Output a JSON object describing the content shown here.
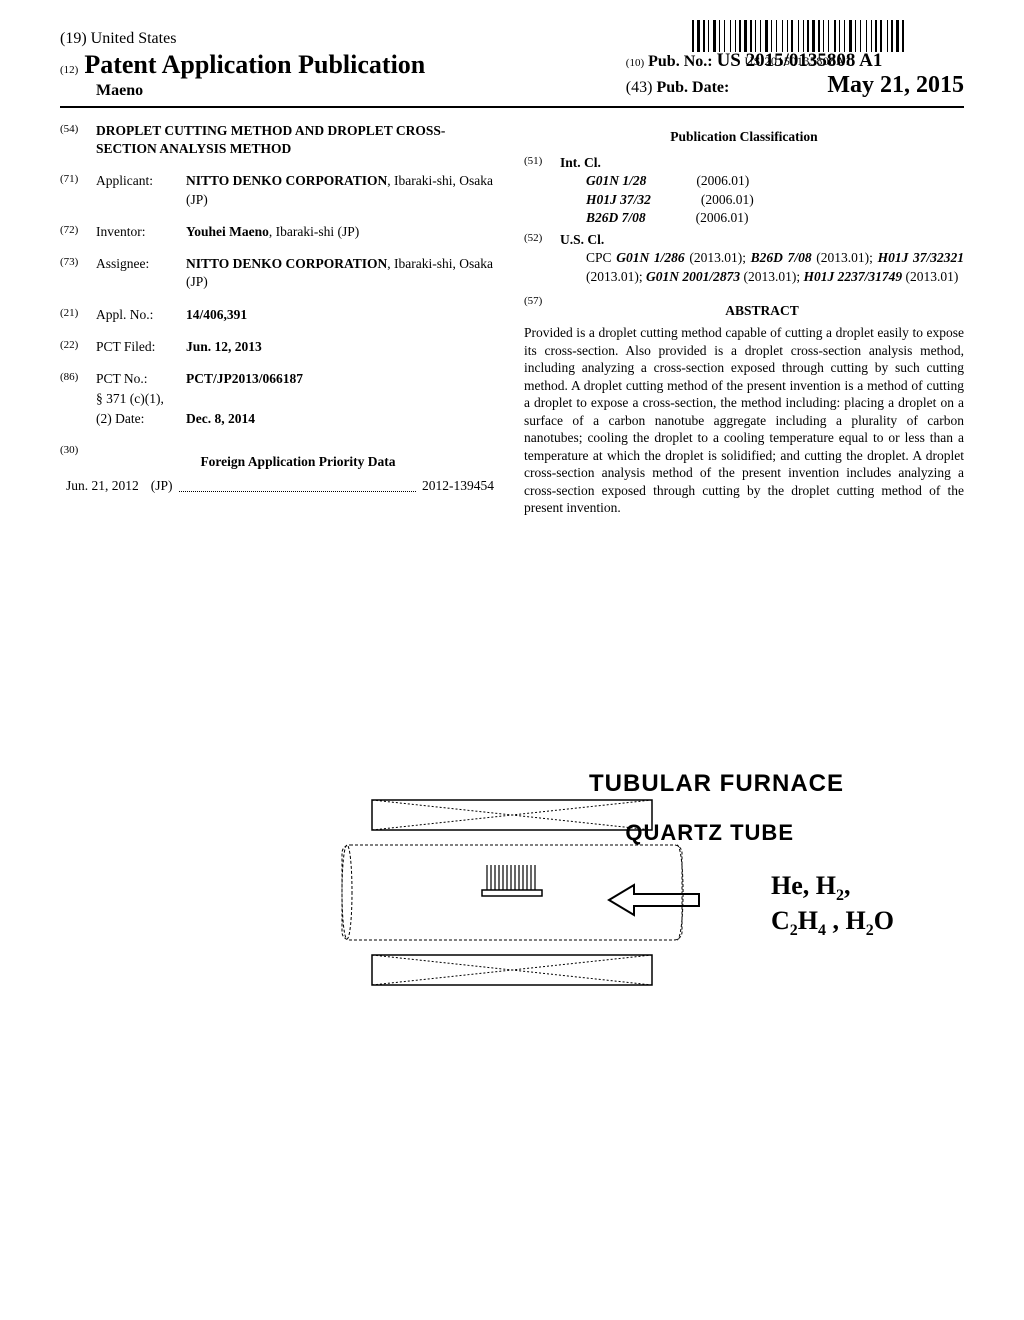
{
  "barcode": {
    "text": "US 20150135808A1"
  },
  "header": {
    "country_tag": "(19)",
    "country": "United States",
    "pub_tag": "(12)",
    "pub_type": "Patent Application Publication",
    "inventor_surname": "Maeno",
    "pubno_tag": "(10)",
    "pubno_label": "Pub. No.:",
    "pubno_value": "US 2015/0135808 A1",
    "pubdate_tag": "(43)",
    "pubdate_label": "Pub. Date:",
    "pubdate_value": "May 21, 2015"
  },
  "left": {
    "title_tag": "(54)",
    "title": "DROPLET CUTTING METHOD AND DROPLET CROSS-SECTION ANALYSIS METHOD",
    "applicant_tag": "(71)",
    "applicant_label": "Applicant:",
    "applicant_value_bold": "NITTO DENKO CORPORATION",
    "applicant_value_rest": ", Ibaraki-shi, Osaka (JP)",
    "inventor_tag": "(72)",
    "inventor_label": "Inventor:",
    "inventor_value_bold": "Youhei Maeno",
    "inventor_value_rest": ", Ibaraki-shi (JP)",
    "assignee_tag": "(73)",
    "assignee_label": "Assignee:",
    "assignee_value_bold": "NITTO DENKO CORPORATION",
    "assignee_value_rest": ", Ibaraki-shi, Osaka (JP)",
    "applno_tag": "(21)",
    "applno_label": "Appl. No.:",
    "applno_value": "14/406,391",
    "pctfiled_tag": "(22)",
    "pctfiled_label": "PCT Filed:",
    "pctfiled_value": "Jun. 12, 2013",
    "pctno_tag": "(86)",
    "pctno_label": "PCT No.:",
    "pctno_value": "PCT/JP2013/066187",
    "s371_label": "§ 371 (c)(1),",
    "s371_date_label": "(2) Date:",
    "s371_date_value": "Dec. 8, 2014",
    "foreign_tag": "(30)",
    "foreign_heading": "Foreign Application Priority Data",
    "foreign_date": "Jun. 21, 2012",
    "foreign_country": "(JP)",
    "foreign_number": "2012-139454"
  },
  "right": {
    "classification_heading": "Publication Classification",
    "intcl_tag": "(51)",
    "intcl_label": "Int. Cl.",
    "intcl": [
      {
        "code": "G01N 1/28",
        "year": "(2006.01)"
      },
      {
        "code": "H01J 37/32",
        "year": "(2006.01)"
      },
      {
        "code": "B26D 7/08",
        "year": "(2006.01)"
      }
    ],
    "uscl_tag": "(52)",
    "uscl_label": "U.S. Cl.",
    "cpc_label": "CPC",
    "cpc_text_parts": [
      {
        "code": "G01N 1/286",
        "suffix": " (2013.01); "
      },
      {
        "code": "B26D 7/08",
        "suffix": " (2013.01); "
      },
      {
        "code": "H01J 37/32321",
        "suffix": " (2013.01); "
      },
      {
        "code": "G01N 2001/2873",
        "suffix": " (2013.01); "
      },
      {
        "code": "H01J 2237/31749",
        "suffix": " (2013.01)"
      }
    ],
    "abstract_tag": "(57)",
    "abstract_heading": "ABSTRACT",
    "abstract_text": "Provided is a droplet cutting method capable of cutting a droplet easily to expose its cross-section. Also provided is a droplet cross-section analysis method, including analyzing a cross-section exposed through cutting by such cutting method. A droplet cutting method of the present invention is a method of cutting a droplet to expose a cross-section, the method including: placing a droplet on a surface of a carbon nanotube aggregate including a plurality of carbon nanotubes; cooling the droplet to a cooling temperature equal to or less than a temperature at which the droplet is solidified; and cutting the droplet. A droplet cross-section analysis method of the present invention includes analyzing a cross-section exposed through cutting by the droplet cutting method of the present invention."
  },
  "figure": {
    "label_furnace": "TUBULAR FURNACE",
    "label_quartz": "QUARTZ TUBE",
    "gas_line1_a": "He, H",
    "gas_line1_b": "2",
    "gas_line1_c": ",",
    "gas_line2_a": "C",
    "gas_line2_b": "2",
    "gas_line2_c": "H",
    "gas_line2_d": "4",
    "gas_line2_e": " , H",
    "gas_line2_f": "2",
    "gas_line2_g": "O"
  },
  "style": {
    "page_bg": "#ffffff",
    "text_color": "#000000",
    "barcode_bar_widths": [
      2,
      1,
      3,
      1,
      2,
      1,
      1,
      2,
      3,
      1,
      1,
      2,
      1,
      3,
      1,
      2,
      1,
      1,
      2,
      1,
      3,
      1,
      2,
      1,
      1,
      2,
      1,
      2,
      3,
      1,
      1,
      2,
      1,
      3,
      1,
      2,
      1,
      1,
      2,
      3,
      1,
      2,
      1,
      1,
      2,
      1,
      3,
      1,
      2,
      1,
      1,
      2,
      1,
      3,
      2,
      1,
      1,
      2,
      1,
      2,
      3,
      1,
      1,
      2,
      1,
      3,
      1,
      2,
      1,
      1,
      2,
      1,
      2,
      3,
      1,
      1,
      2,
      1,
      3,
      1,
      2
    ],
    "font_main": "Times New Roman",
    "font_labels": "Arial"
  }
}
